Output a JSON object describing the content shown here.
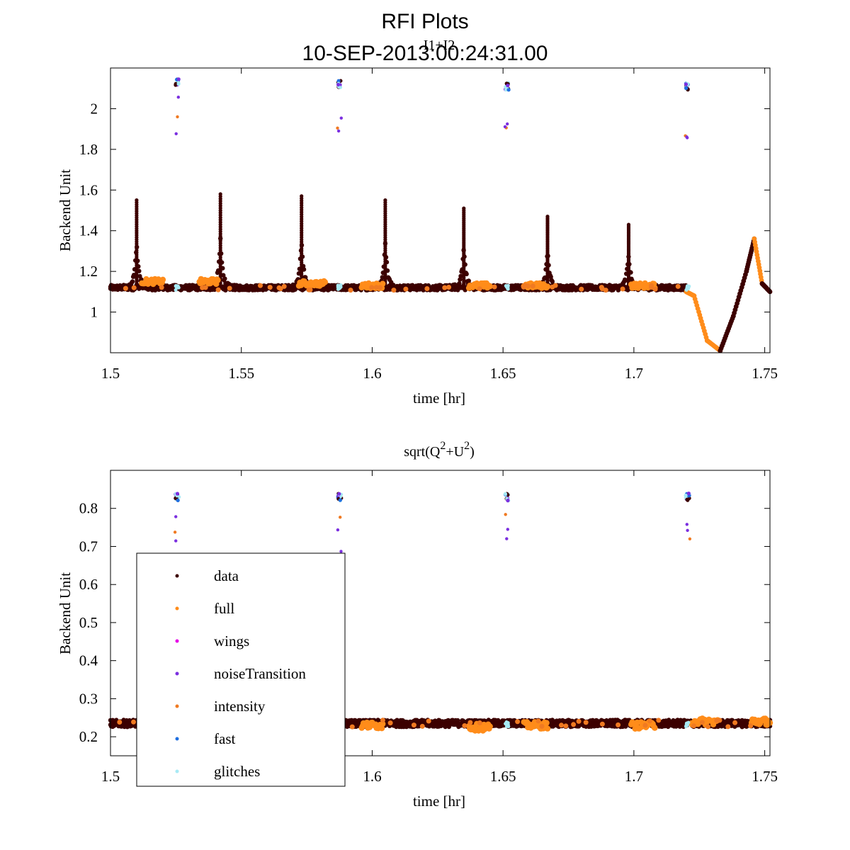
{
  "figure": {
    "title_line1": "RFI Plots",
    "title_line2": "10-SEP-2013:00:24:31.00"
  },
  "legend": {
    "entries": [
      {
        "label": "data",
        "color": "#3c0000"
      },
      {
        "label": "full",
        "color": "#ff8c1a"
      },
      {
        "label": "wings",
        "color": "#e600e6"
      },
      {
        "label": "noiseTransition",
        "color": "#7b2fe0"
      },
      {
        "label": "intensity",
        "color": "#f07a22"
      },
      {
        "label": "fast",
        "color": "#1f6fe0"
      },
      {
        "label": "glitches",
        "color": "#a8eaf5"
      }
    ]
  },
  "chart_data": [
    {
      "type": "scatter",
      "title": "I1+I2",
      "xlabel": "time [hr]",
      "ylabel": "Backend Unit",
      "xlim": [
        1.5,
        1.752
      ],
      "ylim": [
        0.8,
        2.2
      ],
      "xticks": [
        1.5,
        1.55,
        1.6,
        1.65,
        1.7,
        1.75
      ],
      "xtick_labels": [
        "1.5",
        "1.55",
        "1.6",
        "1.65",
        "1.7",
        "1.75"
      ],
      "yticks": [
        1,
        1.2,
        1.4,
        1.6,
        1.8,
        2
      ],
      "ytick_labels": [
        "1",
        "1.2",
        "1.4",
        "1.6",
        "1.8",
        "2"
      ],
      "baseline": 1.12,
      "spikes": [
        {
          "x": 1.51,
          "peak": 1.55
        },
        {
          "x": 1.542,
          "peak": 1.58
        },
        {
          "x": 1.573,
          "peak": 1.57
        },
        {
          "x": 1.605,
          "peak": 1.55
        },
        {
          "x": 1.635,
          "peak": 1.51
        },
        {
          "x": 1.667,
          "peak": 1.47
        },
        {
          "x": 1.698,
          "peak": 1.43
        }
      ],
      "full_segments": [
        {
          "x0": 1.512,
          "x1": 1.52,
          "y": 1.15
        },
        {
          "x0": 1.534,
          "x1": 1.541,
          "y": 1.15
        },
        {
          "x0": 1.572,
          "x1": 1.582,
          "y": 1.14
        },
        {
          "x0": 1.596,
          "x1": 1.604,
          "y": 1.13
        },
        {
          "x0": 1.637,
          "x1": 1.645,
          "y": 1.13
        },
        {
          "x0": 1.658,
          "x1": 1.667,
          "y": 1.13
        },
        {
          "x0": 1.699,
          "x1": 1.708,
          "y": 1.13
        }
      ],
      "noise_clusters": [
        {
          "x": 1.5255,
          "y": 2.13
        },
        {
          "x": 1.5875,
          "y": 2.12
        },
        {
          "x": 1.6515,
          "y": 2.11
        },
        {
          "x": 1.7205,
          "y": 2.11
        }
      ],
      "tail": [
        {
          "x": 1.72,
          "y": 1.1
        },
        {
          "x": 1.723,
          "y": 1.08
        },
        {
          "x": 1.728,
          "y": 0.86
        },
        {
          "x": 1.733,
          "y": 0.81
        },
        {
          "x": 1.738,
          "y": 0.98
        },
        {
          "x": 1.743,
          "y": 1.2
        },
        {
          "x": 1.746,
          "y": 1.36
        },
        {
          "x": 1.749,
          "y": 1.14
        },
        {
          "x": 1.752,
          "y": 1.1
        }
      ]
    },
    {
      "type": "scatter",
      "title_base": "sqrt(Q",
      "title_sup1": "2",
      "title_mid": "+U",
      "title_sup2": "2",
      "title_end": ")",
      "xlabel": "time [hr]",
      "ylabel": "Backend Unit",
      "xlim": [
        1.5,
        1.752
      ],
      "ylim": [
        0.15,
        0.9
      ],
      "xticks": [
        1.5,
        1.55,
        1.6,
        1.65,
        1.7,
        1.75
      ],
      "xtick_labels": [
        "1.5",
        "1.55",
        "1.6",
        "1.65",
        "1.7",
        "1.75"
      ],
      "yticks": [
        0.2,
        0.3,
        0.4,
        0.5,
        0.6,
        0.7,
        0.8
      ],
      "ytick_labels": [
        "0.2",
        "0.3",
        "0.4",
        "0.5",
        "0.6",
        "0.7",
        "0.8"
      ],
      "baseline": 0.235,
      "full_segments": [
        {
          "x0": 1.596,
          "x1": 1.604,
          "y": 0.23
        },
        {
          "x0": 1.637,
          "x1": 1.645,
          "y": 0.225
        },
        {
          "x0": 1.658,
          "x1": 1.667,
          "y": 0.23
        },
        {
          "x0": 1.699,
          "x1": 1.708,
          "y": 0.23
        },
        {
          "x0": 1.722,
          "x1": 1.732,
          "y": 0.24
        },
        {
          "x0": 1.745,
          "x1": 1.752,
          "y": 0.24
        }
      ],
      "noise_clusters": [
        {
          "x": 1.5255,
          "y": 0.83
        },
        {
          "x": 1.5875,
          "y": 0.83
        },
        {
          "x": 1.6515,
          "y": 0.83
        },
        {
          "x": 1.7205,
          "y": 0.83
        }
      ]
    }
  ]
}
